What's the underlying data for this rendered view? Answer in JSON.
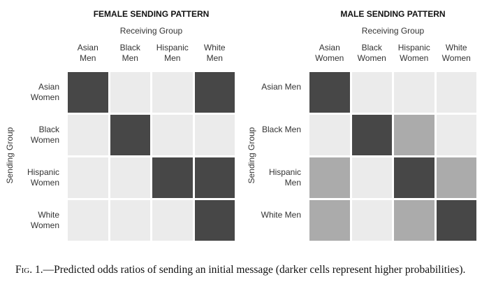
{
  "figure": {
    "panels": [
      {
        "title": "FEMALE SENDING PATTERN",
        "x_axis_label": "Receiving Group",
        "y_axis_label": "Sending Group",
        "columns": [
          "Asian Men",
          "Black Men",
          "Hispanic Men",
          "White Men"
        ],
        "rows": [
          "Asian Women",
          "Black Women",
          "Hispanic Women",
          "White Women"
        ],
        "cell_colors": [
          [
            "#474747",
            "#ebebeb",
            "#ebebeb",
            "#474747"
          ],
          [
            "#ebebeb",
            "#474747",
            "#ebebeb",
            "#ebebeb"
          ],
          [
            "#ebebeb",
            "#ebebeb",
            "#474747",
            "#474747"
          ],
          [
            "#ebebeb",
            "#ebebeb",
            "#ebebeb",
            "#474747"
          ]
        ]
      },
      {
        "title": "MALE SENDING PATTERN",
        "x_axis_label": "Receiving Group",
        "y_axis_label": "Sending Group",
        "columns": [
          "Asian Women",
          "Black Women",
          "Hispanic Women",
          "White Women"
        ],
        "rows": [
          "Asian Men",
          "Black Men",
          "Hispanic Men",
          "White Men"
        ],
        "cell_colors": [
          [
            "#474747",
            "#ebebeb",
            "#ebebeb",
            "#ebebeb"
          ],
          [
            "#ebebeb",
            "#474747",
            "#ababab",
            "#ebebeb"
          ],
          [
            "#ababab",
            "#ebebeb",
            "#474747",
            "#ababab"
          ],
          [
            "#ababab",
            "#ebebeb",
            "#ababab",
            "#474747"
          ]
        ]
      }
    ],
    "caption_label": "Fig. 1.",
    "caption_text": "—Predicted odds ratios of sending an initial message (darker cells represent higher probabilities)."
  }
}
